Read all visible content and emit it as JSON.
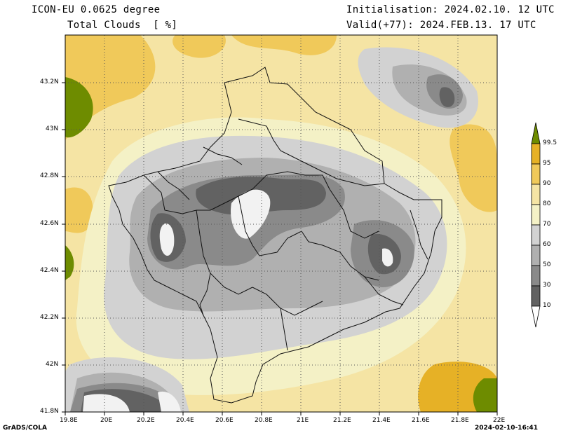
{
  "header": {
    "model": "ICON-EU 0.0625 degree",
    "variable": "Total Clouds  [ %]",
    "init": "Initialisation: 2024.02.10. 12 UTC",
    "valid": "Valid(+77): 2024.FEB.13. 17 UTC"
  },
  "axes": {
    "lat_ticks": [
      "43.2N",
      "43N",
      "42.8N",
      "42.6N",
      "42.4N",
      "42.2N",
      "42N",
      "41.8N"
    ],
    "lon_ticks": [
      "19.8E",
      "20E",
      "20.2E",
      "20.4E",
      "20.6E",
      "20.8E",
      "21E",
      "21.2E",
      "21.4E",
      "21.6E",
      "21.8E",
      "22E"
    ]
  },
  "colorbar": {
    "labels": [
      "99.5",
      "95",
      "90",
      "80",
      "70",
      "60",
      "50",
      "30",
      "10"
    ],
    "colors": [
      "#6e8c00",
      "#e6b126",
      "#f0c95a",
      "#f5e4a4",
      "#f4f1c6",
      "#d2d2d2",
      "#b0b0b0",
      "#8a8a8a",
      "#626262",
      "#ffffff"
    ]
  },
  "footer": {
    "left": "GrADS/COLA",
    "right": "2024-02-10-16:41"
  }
}
